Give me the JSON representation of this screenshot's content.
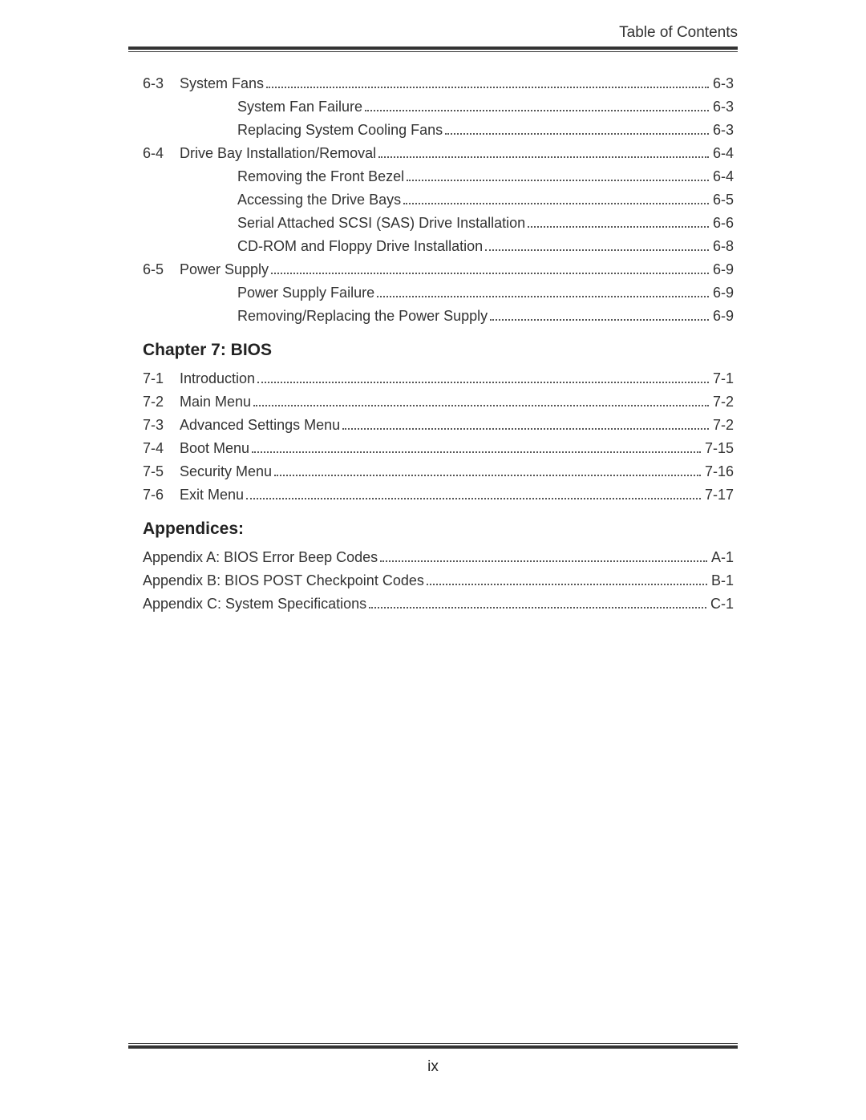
{
  "header": {
    "title": "Table of Contents"
  },
  "footer": {
    "page_number": "ix"
  },
  "sections": [
    {
      "type": "entries",
      "rows": [
        {
          "num": "6-3",
          "indent": 0,
          "label": "System Fans",
          "page": "6-3"
        },
        {
          "num": "",
          "indent": 1,
          "label": "System Fan Failure",
          "page": "6-3"
        },
        {
          "num": "",
          "indent": 1,
          "label": "Replacing System Cooling Fans",
          "page": "6-3"
        },
        {
          "num": "6-4",
          "indent": 0,
          "label": "Drive Bay Installation/Removal",
          "page": "6-4"
        },
        {
          "num": "",
          "indent": 1,
          "label": "Removing the Front Bezel",
          "page": "6-4"
        },
        {
          "num": "",
          "indent": 1,
          "label": "Accessing the Drive Bays",
          "page": "6-5"
        },
        {
          "num": "",
          "indent": 1,
          "label": "Serial Attached SCSI (SAS) Drive Installation",
          "page": "6-6"
        },
        {
          "num": "",
          "indent": 1,
          "label": "CD-ROM and Floppy Drive Installation",
          "page": "6-8"
        },
        {
          "num": "6-5",
          "indent": 0,
          "label": "Power Supply",
          "page": "6-9"
        },
        {
          "num": "",
          "indent": 1,
          "label": "Power Supply Failure",
          "page": "6-9"
        },
        {
          "num": "",
          "indent": 1,
          "label": "Removing/Replacing the Power Supply",
          "page": "6-9"
        }
      ]
    },
    {
      "type": "heading",
      "text": "Chapter 7: BIOS"
    },
    {
      "type": "entries",
      "rows": [
        {
          "num": "7-1",
          "indent": 0,
          "label": "Introduction",
          "page": "7-1"
        },
        {
          "num": "7-2",
          "indent": 0,
          "label": "Main Menu",
          "page": "7-2"
        },
        {
          "num": "7-3",
          "indent": 0,
          "label": "Advanced Settings Menu",
          "page": "7-2"
        },
        {
          "num": "7-4",
          "indent": 0,
          "label": "Boot Menu",
          "page": "7-15"
        },
        {
          "num": "7-5",
          "indent": 0,
          "label": "Security Menu",
          "page": "7-16"
        },
        {
          "num": "7-6",
          "indent": 0,
          "label": "Exit Menu",
          "page": "7-17"
        }
      ]
    },
    {
      "type": "heading",
      "text": "Appendices:"
    },
    {
      "type": "appendix",
      "rows": [
        {
          "label": "Appendix A: BIOS Error Beep Codes",
          "page": "A-1"
        },
        {
          "label": "Appendix B: BIOS POST Checkpoint Codes",
          "page": "B-1"
        },
        {
          "label": "Appendix C: System Specifications",
          "page": "C-1"
        }
      ]
    }
  ]
}
